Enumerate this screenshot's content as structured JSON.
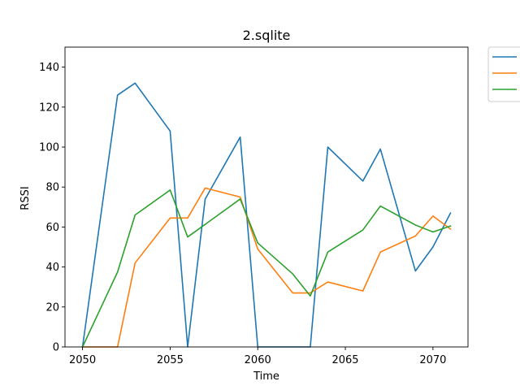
{
  "chart_data": {
    "type": "line",
    "title": "2.sqlite",
    "xlabel": "Time",
    "ylabel": "RSSI",
    "xlim": [
      2049.0,
      2072.0
    ],
    "ylim": [
      0,
      150
    ],
    "xticks": [
      2050,
      2055,
      2060,
      2065,
      2070
    ],
    "yticks": [
      0,
      20,
      40,
      60,
      80,
      100,
      120,
      140
    ],
    "grid": false,
    "legend_position": "outside-top-right",
    "series": [
      {
        "color": "#1f77b4",
        "x": [
          2050,
          2052,
          2053,
          2055,
          2056,
          2057,
          2059,
          2060,
          2063,
          2064,
          2066,
          2067,
          2069,
          2070,
          2071
        ],
        "y": [
          0,
          126,
          132,
          108,
          0,
          74,
          105,
          0,
          0,
          100,
          83,
          99,
          38,
          50,
          67
        ]
      },
      {
        "color": "#ff7f0e",
        "x": [
          2050,
          2052,
          2053,
          2055,
          2056,
          2057,
          2059,
          2060,
          2062,
          2063,
          2064,
          2066,
          2067,
          2069,
          2070,
          2071
        ],
        "y": [
          0,
          0,
          42,
          64.5,
          64.5,
          79.5,
          75,
          49,
          27,
          27,
          32.5,
          28,
          47.5,
          55.5,
          65.5,
          59
        ]
      },
      {
        "color": "#2ca02c",
        "x": [
          2050,
          2052,
          2053,
          2055,
          2056,
          2059,
          2060,
          2062,
          2063,
          2064,
          2066,
          2067,
          2069,
          2070,
          2071
        ],
        "y": [
          0,
          37.5,
          66,
          78.5,
          55,
          74,
          52,
          36.5,
          25.5,
          47.5,
          58.5,
          70.5,
          61,
          57.5,
          60.5
        ]
      }
    ]
  }
}
